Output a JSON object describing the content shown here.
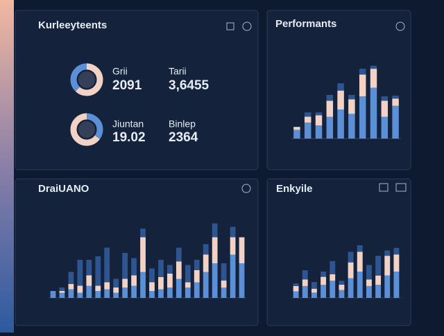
{
  "panels": [
    {
      "title": "Kurleeyteents",
      "metrics": [
        {
          "label": "Grii",
          "value": "2091"
        },
        {
          "label": "Tarii",
          "value": "3,6455"
        },
        {
          "label": "Jiuntan",
          "value": "19.02"
        },
        {
          "label": "Binlep",
          "value": "2364"
        }
      ],
      "donuts": [
        {
          "values": [
            62,
            38
          ],
          "colors": [
            "#f3d2c6",
            "#5b8fd6"
          ]
        },
        {
          "values": [
            35,
            65
          ],
          "colors": [
            "#5b8fd6",
            "#f3d2c6"
          ]
        }
      ]
    },
    {
      "title": "Performants",
      "chart": {
        "type": "bar",
        "ylim": [
          0,
          100
        ],
        "series": [
          {
            "color": "#5b8fd6",
            "values": [
              12,
              22,
              18,
              30,
              40,
              34,
              58,
              70,
              30,
              45
            ]
          },
          {
            "color": "#f3d2c6",
            "values": [
              4,
              8,
              14,
              22,
              26,
              20,
              30,
              26,
              22,
              10
            ]
          },
          {
            "color": "#2e5590",
            "values": [
              0,
              6,
              4,
              8,
              10,
              6,
              8,
              4,
              6,
              4
            ]
          }
        ]
      }
    },
    {
      "title": "DraiUANO",
      "chart": {
        "type": "bar",
        "ylim": [
          0,
          100
        ],
        "series": [
          {
            "color": "#5b8fd6",
            "values": [
              8,
              6,
              10,
              6,
              14,
              8,
              10,
              6,
              12,
              14,
              30,
              8,
              10,
              12,
              22,
              12,
              18,
              30,
              40,
              12,
              50,
              40
            ]
          },
          {
            "color": "#f3d2c6",
            "values": [
              0,
              2,
              6,
              8,
              12,
              6,
              8,
              6,
              10,
              12,
              40,
              10,
              14,
              16,
              20,
              6,
              14,
              20,
              30,
              8,
              20,
              30
            ]
          },
          {
            "color": "#2e5590",
            "values": [
              0,
              4,
              14,
              30,
              18,
              34,
              40,
              10,
              30,
              20,
              10,
              16,
              20,
              10,
              16,
              20,
              12,
              12,
              16,
              20,
              12,
              0
            ]
          }
        ]
      }
    },
    {
      "title": "Enkyile",
      "chart": {
        "type": "bar",
        "ylim": [
          0,
          100
        ],
        "series": [
          {
            "color": "#5b8fd6",
            "values": [
              10,
              18,
              8,
              20,
              26,
              12,
              30,
              40,
              18,
              20,
              34,
              40
            ]
          },
          {
            "color": "#f3d2c6",
            "values": [
              8,
              10,
              6,
              12,
              10,
              8,
              24,
              30,
              10,
              14,
              30,
              26
            ]
          },
          {
            "color": "#2e5590",
            "values": [
              4,
              14,
              10,
              8,
              20,
              6,
              16,
              10,
              22,
              30,
              8,
              10
            ]
          }
        ]
      }
    }
  ]
}
